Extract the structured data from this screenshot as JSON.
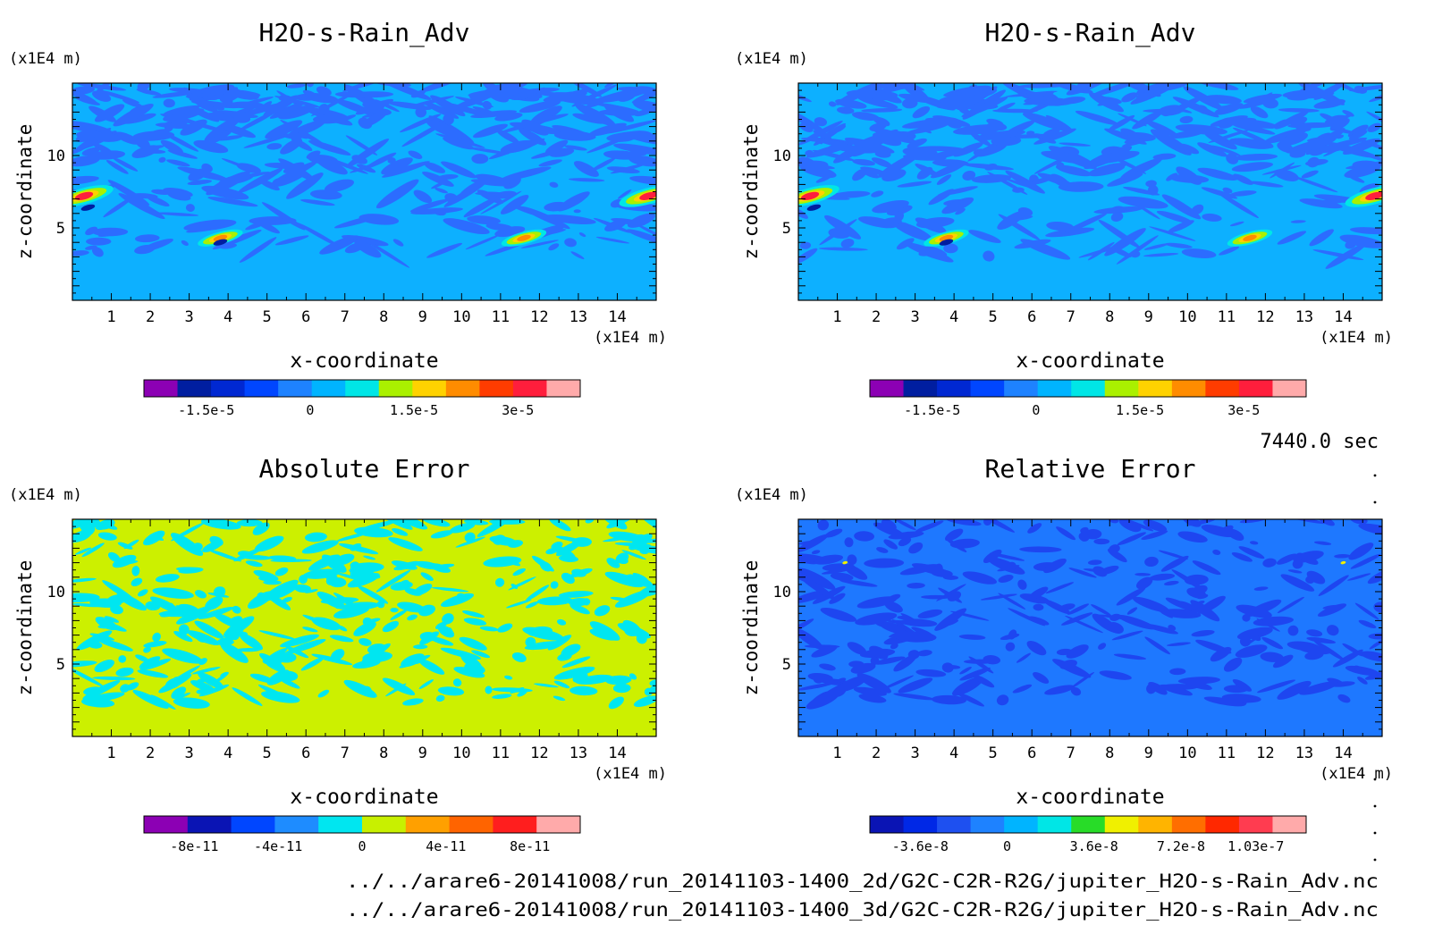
{
  "time_label": "7440.0 sec",
  "footer": {
    "line1": "../../arare6-20141008/run_20141103-1400_2d/G2C-C2R-R2G/jupiter_H2O-s-Rain_Adv.nc",
    "line2": "../../arare6-20141008/run_20141103-1400_3d/G2C-C2R-R2G/jupiter_H2O-s-Rain_Adv.nc"
  },
  "chart_data": [
    {
      "type": "heatmap",
      "title": "H2O-s-Rain_Adv",
      "xlabel": "x-coordinate",
      "ylabel": "z-coordinate",
      "x_unit": "(x1E4 m)",
      "y_unit": "(x1E4 m)",
      "xlim": [
        0,
        15
      ],
      "ylim": [
        0,
        15
      ],
      "xticks": [
        "1",
        "2",
        "3",
        "4",
        "5",
        "6",
        "7",
        "8",
        "9",
        "10",
        "11",
        "12",
        "13",
        "14"
      ],
      "yticks": [
        "5",
        "10"
      ],
      "background_color": "#0db0ff",
      "pattern_color": "#2c6cff",
      "hotspots": [
        {
          "x": 0.3,
          "z": 7.2,
          "value": 3.2e-05
        },
        {
          "x": 3.8,
          "z": 4.3,
          "value": 2e-05
        },
        {
          "x": 11.6,
          "z": 4.3,
          "value": 2e-05
        },
        {
          "x": 14.8,
          "z": 7.2,
          "value": 3.2e-05
        },
        {
          "x": 0.4,
          "z": 6.4,
          "value": -1.8e-05
        },
        {
          "x": 3.8,
          "z": 4.0,
          "value": -1.8e-05
        }
      ],
      "colorbar": {
        "colors": [
          "#8c00b4",
          "#001ea0",
          "#0028d2",
          "#0046ff",
          "#1e82ff",
          "#00b4ff",
          "#00e6e6",
          "#aaf000",
          "#ffd200",
          "#ff8c00",
          "#ff3c00",
          "#ff1e3c",
          "#ffaaaa"
        ],
        "labels": [
          "-1.5e-5",
          "0",
          "1.5e-5",
          "3e-5"
        ]
      }
    },
    {
      "type": "heatmap",
      "title": "H2O-s-Rain_Adv",
      "xlabel": "x-coordinate",
      "ylabel": "z-coordinate",
      "x_unit": "(x1E4 m)",
      "y_unit": "(x1E4 m)",
      "xlim": [
        0,
        15
      ],
      "ylim": [
        0,
        15
      ],
      "xticks": [
        "1",
        "2",
        "3",
        "4",
        "5",
        "6",
        "7",
        "8",
        "9",
        "10",
        "11",
        "12",
        "13",
        "14"
      ],
      "yticks": [
        "5",
        "10"
      ],
      "background_color": "#0db0ff",
      "pattern_color": "#2c6cff",
      "hotspots": [
        {
          "x": 0.3,
          "z": 7.2,
          "value": 3.2e-05
        },
        {
          "x": 3.8,
          "z": 4.3,
          "value": 2e-05
        },
        {
          "x": 11.6,
          "z": 4.3,
          "value": 2e-05
        },
        {
          "x": 14.8,
          "z": 7.2,
          "value": 3.2e-05
        },
        {
          "x": 0.4,
          "z": 6.4,
          "value": -1.8e-05
        },
        {
          "x": 3.8,
          "z": 4.0,
          "value": -1.8e-05
        }
      ],
      "colorbar": {
        "colors": [
          "#8c00b4",
          "#001ea0",
          "#0028d2",
          "#0046ff",
          "#1e82ff",
          "#00b4ff",
          "#00e6e6",
          "#aaf000",
          "#ffd200",
          "#ff8c00",
          "#ff3c00",
          "#ff1e3c",
          "#ffaaaa"
        ],
        "labels": [
          "-1.5e-5",
          "0",
          "1.5e-5",
          "3e-5"
        ]
      }
    },
    {
      "type": "heatmap",
      "title": "Absolute Error",
      "xlabel": "x-coordinate",
      "ylabel": "z-coordinate",
      "x_unit": "(x1E4 m)",
      "y_unit": "(x1E4 m)",
      "xlim": [
        0,
        15
      ],
      "ylim": [
        0,
        15
      ],
      "xticks": [
        "1",
        "2",
        "3",
        "4",
        "5",
        "6",
        "7",
        "8",
        "9",
        "10",
        "11",
        "12",
        "13",
        "14"
      ],
      "yticks": [
        "5",
        "10"
      ],
      "background_color": "#ccf000",
      "pattern_color": "#00e6f0",
      "hotspots": [],
      "colorbar": {
        "colors": [
          "#8c00b4",
          "#0a14b4",
          "#0046ff",
          "#1e8cff",
          "#00e6f0",
          "#c8f000",
          "#ffa000",
          "#ff6400",
          "#ff1e1e",
          "#ffaaaa"
        ],
        "labels": [
          "-8e-11",
          "-4e-11",
          "0",
          "4e-11",
          "8e-11"
        ]
      }
    },
    {
      "type": "heatmap",
      "title": "Relative Error",
      "xlabel": "x-coordinate",
      "ylabel": "z-coordinate",
      "x_unit": "(x1E4 m)",
      "y_unit": "(x1E4 m)",
      "xlim": [
        0,
        15
      ],
      "ylim": [
        0,
        15
      ],
      "xticks": [
        "1",
        "2",
        "3",
        "4",
        "5",
        "6",
        "7",
        "8",
        "9",
        "10",
        "11",
        "12",
        "13",
        "14"
      ],
      "yticks": [
        "5",
        "10"
      ],
      "background_color": "#1e78ff",
      "pattern_color": "#1e46f0",
      "hotspots": [
        {
          "x": 1.2,
          "z": 12.0,
          "value": 5e-08
        },
        {
          "x": 14.0,
          "z": 12.0,
          "value": 5e-08
        }
      ],
      "colorbar": {
        "colors": [
          "#0a14b4",
          "#0028e6",
          "#1e50f0",
          "#1e82ff",
          "#00b4ff",
          "#00e6e6",
          "#28dc28",
          "#f0f000",
          "#ffb400",
          "#ff6e00",
          "#ff2800",
          "#ff3c50",
          "#ffaaaa"
        ],
        "labels": [
          "-3.6e-8",
          "0",
          "3.6e-8",
          "7.2e-8",
          "1.03e-7"
        ]
      }
    }
  ]
}
